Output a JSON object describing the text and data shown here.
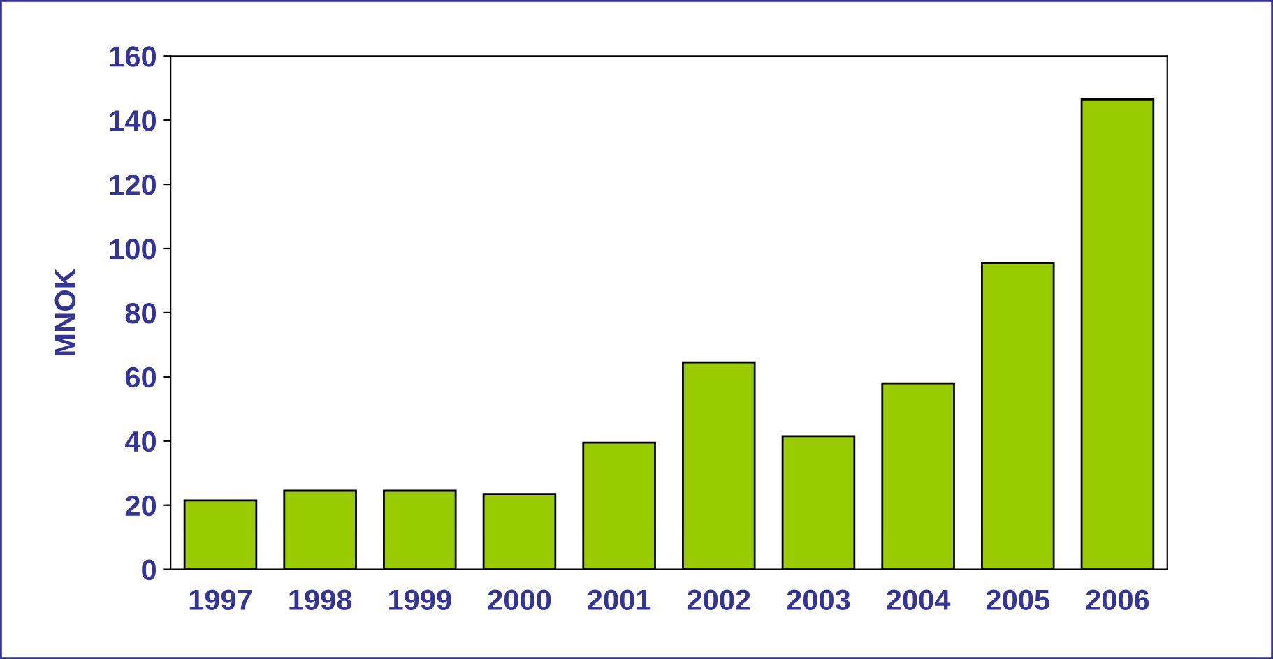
{
  "chart_data": {
    "type": "bar",
    "ylabel": "MNOK",
    "categories": [
      "1997",
      "1998",
      "1999",
      "2000",
      "2001",
      "2002",
      "2003",
      "2004",
      "2005",
      "2006"
    ],
    "values": [
      21.5,
      24.5,
      24.5,
      23.5,
      39.5,
      64.5,
      41.5,
      58,
      95.5,
      146.5
    ],
    "color": "#99cc00",
    "ylim": [
      0,
      160
    ],
    "yticks": [
      0,
      20,
      40,
      60,
      80,
      100,
      120,
      140,
      160
    ],
    "grid": false,
    "legend": false
  }
}
